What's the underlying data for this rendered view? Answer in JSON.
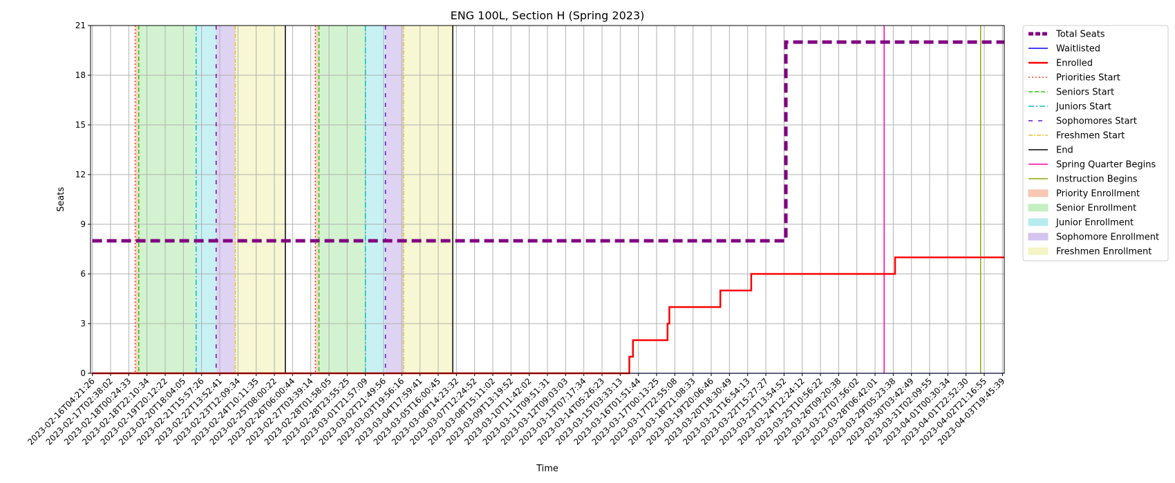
{
  "chart_data": {
    "type": "line",
    "title": "ENG 100L, Section H (Spring 2023)",
    "xlabel": "Time",
    "ylabel": "Seats",
    "ylim": [
      0,
      21
    ],
    "yticks": [
      0,
      3,
      6,
      9,
      12,
      15,
      18,
      21
    ],
    "grid": true,
    "legend_position": "outside-right-top",
    "x_ticks": [
      "2023-02-16T04:21:26",
      "2023-02-17T02:38:02",
      "2023-02-18T00:24:33",
      "2023-02-18T22:10:34",
      "2023-02-19T20:12:22",
      "2023-02-20T18:04:05",
      "2023-02-21T15:57:26",
      "2023-02-22T13:52:41",
      "2023-02-23T12:09:34",
      "2023-02-24T10:11:35",
      "2023-02-25T08:00:22",
      "2023-02-26T06:00:44",
      "2023-02-27T03:39:14",
      "2023-02-28T01:58:05",
      "2023-02-28T23:55:25",
      "2023-03-01T21:57:09",
      "2023-03-02T21:49:56",
      "2023-03-03T19:56:16",
      "2023-03-04T17:59:41",
      "2023-03-05T16:00:45",
      "2023-03-06T14:23:32",
      "2023-03-07T12:24:52",
      "2023-03-08T15:11:02",
      "2023-03-09T13:19:52",
      "2023-03-10T11:42:02",
      "2023-03-11T09:51:31",
      "2023-03-12T09:03:03",
      "2023-03-13T07:17:34",
      "2023-03-14T05:26:23",
      "2023-03-15T03:33:13",
      "2023-03-16T01:51:44",
      "2023-03-17T00:13:25",
      "2023-03-17T22:55:08",
      "2023-03-18T21:08:33",
      "2023-03-19T20:06:46",
      "2023-03-20T18:30:49",
      "2023-03-21T16:54:13",
      "2023-03-22T15:27:27",
      "2023-03-23T13:54:52",
      "2023-03-24T12:24:12",
      "2023-03-25T10:56:22",
      "2023-03-26T09:20:38",
      "2023-03-27T07:56:02",
      "2023-03-28T06:42:01",
      "2023-03-29T05:23:38",
      "2023-03-30T03:42:49",
      "2023-03-31T02:09:55",
      "2023-04-01T00:30:34",
      "2023-04-01T22:52:30",
      "2023-04-02T21:16:55",
      "2023-04-03T19:45:39"
    ],
    "series": [
      {
        "name": "Total Seats",
        "color": "#800080",
        "style": "dashed-thick",
        "points": [
          [
            0,
            8
          ],
          [
            38.1,
            8
          ],
          [
            38.1,
            20
          ],
          [
            50.1,
            20
          ]
        ]
      },
      {
        "name": "Waitlisted",
        "color": "#0000ff",
        "style": "solid",
        "points": [
          [
            0,
            0
          ],
          [
            50.1,
            0
          ]
        ]
      },
      {
        "name": "Enrolled",
        "color": "#ff0000",
        "style": "solid-thick",
        "points": [
          [
            0,
            0
          ],
          [
            29.5,
            0
          ],
          [
            29.5,
            1
          ],
          [
            29.7,
            1
          ],
          [
            29.7,
            2
          ],
          [
            31.6,
            2
          ],
          [
            31.6,
            3
          ],
          [
            31.7,
            3
          ],
          [
            31.7,
            4
          ],
          [
            34.5,
            4
          ],
          [
            34.5,
            5
          ],
          [
            36.2,
            5
          ],
          [
            36.2,
            6
          ],
          [
            44.1,
            6
          ],
          [
            44.1,
            7
          ],
          [
            50.1,
            7
          ]
        ]
      }
    ],
    "vertical_lines": [
      {
        "name": "Priorities Start",
        "color": "#ff3b1f",
        "style": "dotted",
        "x": [
          2.35,
          12.25
        ]
      },
      {
        "name": "Seniors Start",
        "color": "#22cc00",
        "style": "dashed",
        "x": [
          2.55,
          12.45
        ]
      },
      {
        "name": "Juniors Start",
        "color": "#00bfc4",
        "style": "dashdot",
        "x": [
          5.7,
          15.0
        ]
      },
      {
        "name": "Sophomores Start",
        "color": "#6a0dcc",
        "style": "loose-dash",
        "x": [
          6.8,
          16.1
        ]
      },
      {
        "name": "Freshmen Start",
        "color": "#e6c229",
        "style": "dashdot-thin",
        "x": [
          7.85,
          17.1
        ]
      },
      {
        "name": "End",
        "color": "#000000",
        "style": "solid",
        "x": [
          10.6,
          19.8
        ]
      },
      {
        "name": "Spring Quarter Begins",
        "color": "#ff00aa",
        "style": "solid",
        "x": [
          43.5
        ]
      },
      {
        "name": "Instruction Begins",
        "color": "#88aa00",
        "style": "solid",
        "x": [
          48.8
        ]
      }
    ],
    "shaded_regions": [
      {
        "name": "Priority Enrollment",
        "color": "#f7c6b5",
        "ranges": [
          [
            2.35,
            2.55
          ],
          [
            12.25,
            12.45
          ]
        ]
      },
      {
        "name": "Senior Enrollment",
        "color": "#c4efc0",
        "ranges": [
          [
            2.55,
            5.7
          ],
          [
            12.45,
            15.0
          ]
        ]
      },
      {
        "name": "Junior Enrollment",
        "color": "#b5ecf0",
        "ranges": [
          [
            5.7,
            6.8
          ],
          [
            15.0,
            16.1
          ]
        ]
      },
      {
        "name": "Sophomore Enrollment",
        "color": "#d4c4ef",
        "ranges": [
          [
            6.8,
            7.85
          ],
          [
            16.1,
            17.1
          ]
        ]
      },
      {
        "name": "Freshmen Enrollment",
        "color": "#f4f4c4",
        "ranges": [
          [
            7.85,
            10.6
          ],
          [
            17.1,
            19.8
          ]
        ]
      }
    ],
    "legend": [
      {
        "label": "Total Seats",
        "kind": "line",
        "color": "#800080",
        "style": "dashed-thick"
      },
      {
        "label": "Waitlisted",
        "kind": "line",
        "color": "#0000ff",
        "style": "solid"
      },
      {
        "label": "Enrolled",
        "kind": "line",
        "color": "#ff0000",
        "style": "solid-thick"
      },
      {
        "label": "Priorities Start",
        "kind": "line",
        "color": "#ff3b1f",
        "style": "dotted"
      },
      {
        "label": "Seniors Start",
        "kind": "line",
        "color": "#22cc00",
        "style": "dashed"
      },
      {
        "label": "Juniors Start",
        "kind": "line",
        "color": "#00bfc4",
        "style": "dashdot"
      },
      {
        "label": "Sophomores Start",
        "kind": "line",
        "color": "#6a0dcc",
        "style": "loose-dash"
      },
      {
        "label": "Freshmen Start",
        "kind": "line",
        "color": "#e6c229",
        "style": "dashdot-thin"
      },
      {
        "label": "End",
        "kind": "line",
        "color": "#000000",
        "style": "solid"
      },
      {
        "label": "Spring Quarter Begins",
        "kind": "line",
        "color": "#ff00aa",
        "style": "solid"
      },
      {
        "label": "Instruction Begins",
        "kind": "line",
        "color": "#88aa00",
        "style": "solid"
      },
      {
        "label": "Priority Enrollment",
        "kind": "patch",
        "color": "#f7c6b5"
      },
      {
        "label": "Senior Enrollment",
        "kind": "patch",
        "color": "#c4efc0"
      },
      {
        "label": "Junior Enrollment",
        "kind": "patch",
        "color": "#b5ecf0"
      },
      {
        "label": "Sophomore Enrollment",
        "kind": "patch",
        "color": "#d4c4ef"
      },
      {
        "label": "Freshmen Enrollment",
        "kind": "patch",
        "color": "#f4f4c4"
      }
    ]
  }
}
